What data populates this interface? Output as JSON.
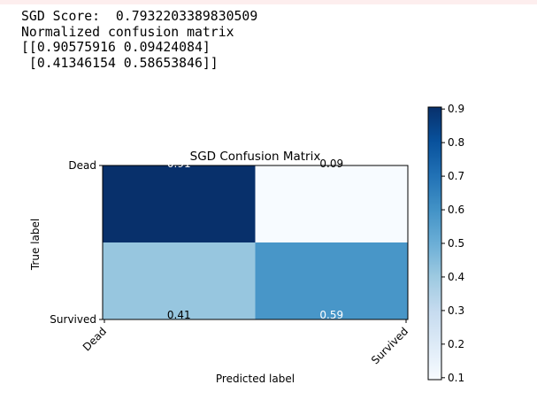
{
  "output_lines": [
    "SGD Score:  0.7932203389830509",
    "Normalized confusion matrix",
    "[[0.90575916 0.09424084]",
    " [0.41346154 0.58653846]]"
  ],
  "chart_data": {
    "type": "heatmap",
    "title": "SGD Confusion Matrix",
    "xlabel": "Predicted label",
    "ylabel": "True label",
    "x_categories": [
      "Dead",
      "Survived"
    ],
    "y_categories": [
      "Dead",
      "Survived"
    ],
    "values": [
      [
        0.90575916,
        0.09424084
      ],
      [
        0.41346154,
        0.58653846
      ]
    ],
    "cell_labels": [
      [
        "0.91",
        "0.09"
      ],
      [
        "0.41",
        "0.59"
      ]
    ],
    "colormap": "Blues",
    "colorbar": {
      "range": [
        0.09424084,
        0.90575916
      ],
      "ticks": [
        0.1,
        0.2,
        0.3,
        0.4,
        0.5,
        0.6,
        0.7,
        0.8,
        0.9
      ],
      "tick_labels": [
        "0.1",
        "0.2",
        "0.3",
        "0.4",
        "0.5",
        "0.6",
        "0.7",
        "0.8",
        "0.9"
      ]
    },
    "grid": false
  }
}
